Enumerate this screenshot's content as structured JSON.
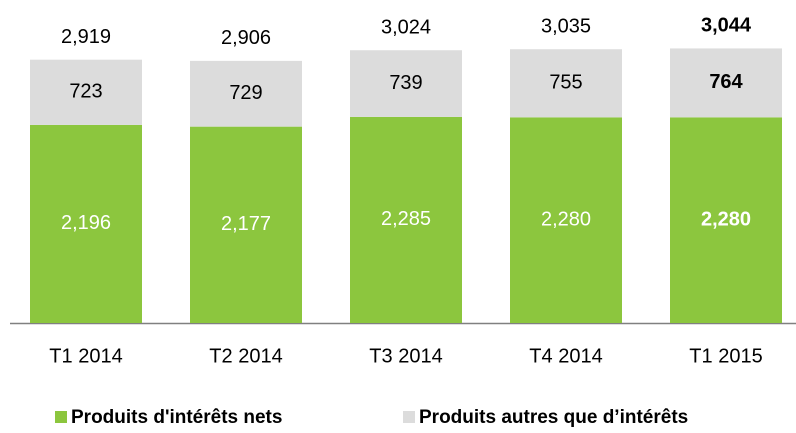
{
  "chart_data": {
    "type": "stacked_bar",
    "categories": [
      "T1 2014",
      "T2 2014",
      "T3 2014",
      "T4 2014",
      "T1 2015"
    ],
    "series": [
      {
        "name": "Produits d'intérêts nets",
        "color": "#8cc63e",
        "values": [
          2196,
          2177,
          2285,
          2280,
          2280
        ],
        "value_labels": [
          "2,196",
          "2,177",
          "2,285",
          "2,280",
          "2,280"
        ]
      },
      {
        "name": "Produits autres que d’intérêts",
        "color": "#dcdcdc",
        "values": [
          723,
          729,
          739,
          755,
          764
        ],
        "value_labels": [
          "723",
          "729",
          "739",
          "755",
          "764"
        ]
      }
    ],
    "totals": [
      2919,
      2906,
      3024,
      3035,
      3044
    ],
    "total_labels": [
      "2,919",
      "2,906",
      "3,024",
      "3,035",
      "3,044"
    ],
    "highlight_index": 4,
    "legend": "bottom"
  }
}
